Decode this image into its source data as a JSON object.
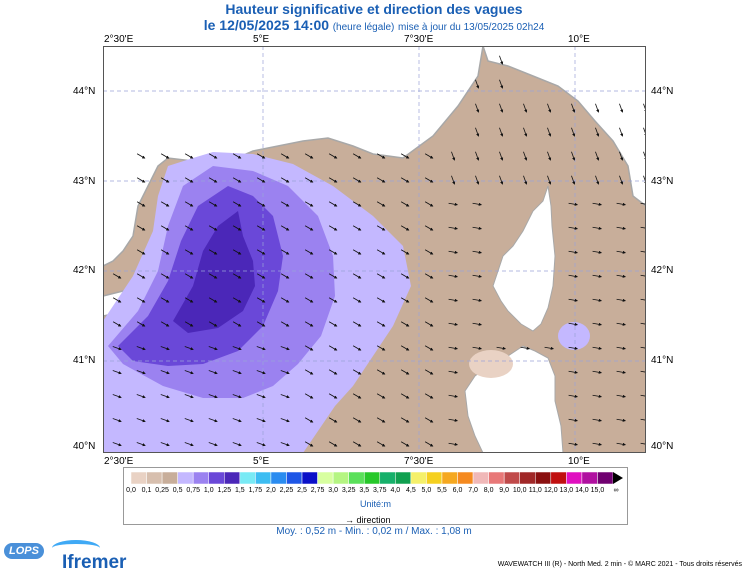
{
  "title": "Hauteur significative et direction des vagues",
  "subtitle": {
    "datetime": "le 12/05/2025 14:00",
    "note": "(heure légale)",
    "update": "mise à jour du 13/05/2025 02h24"
  },
  "axes": {
    "lon_labels": [
      "2°30'E",
      "5°E",
      "7°30'E",
      "10°E"
    ],
    "lat_labels": [
      "44°N",
      "43°N",
      "42°N",
      "41°N",
      "40°N"
    ]
  },
  "legend": {
    "ticks": [
      "0,0",
      "0,1",
      "0,25",
      "0,5",
      "0,75",
      "1,0",
      "1,25",
      "1,5",
      "1,75",
      "2,0",
      "2,25",
      "2,5",
      "2,75",
      "3,0",
      "3,25",
      "3,5",
      "3,75",
      "4,0",
      "4,5",
      "5,0",
      "5,5",
      "6,0",
      "7,0",
      "8,0",
      "9,0",
      "10,0",
      "11,0",
      "12,0",
      "13,0",
      "14,0",
      "15,0"
    ],
    "colors": [
      "#e9d2c4",
      "#d7bfae",
      "#c8ae9a",
      "#c4b8ff",
      "#9b82f0",
      "#6a48d8",
      "#4b27b8",
      "#79eaf5",
      "#3dbdf2",
      "#2a8cf0",
      "#1e56e6",
      "#0a10c8",
      "#d8ffa0",
      "#b5f582",
      "#5ae05a",
      "#27c82a",
      "#16b06a",
      "#10a050",
      "#f5f06a",
      "#f5d020",
      "#f5a820",
      "#f58a20",
      "#f0b8b8",
      "#e87878",
      "#c04a4a",
      "#a02828",
      "#8a1010",
      "#c01010",
      "#e010c0",
      "#b010a0",
      "#700070"
    ],
    "unit": "Unité:m",
    "direction_label": "direction",
    "infinity": "∞"
  },
  "stats": "Moy. : 0,52 m  -  Min. : 0,02 m / Max. : 1,08 m",
  "footer": "WAVEWATCH III (R) - North Med. 2 min - © MARC 2021 - Tous droits réservés",
  "logos": {
    "lops": "LOPS",
    "ifremer": "Ifremer"
  },
  "map_colors": {
    "sea_land": "#ffffff",
    "coast_gray": "#a8a8a8",
    "h_0_25": "#c8ae9a",
    "h_0_5": "#c4b8ff",
    "h_0_75": "#9b82f0",
    "h_1_0": "#6a48d8",
    "h_1_25": "#4b27b8"
  }
}
